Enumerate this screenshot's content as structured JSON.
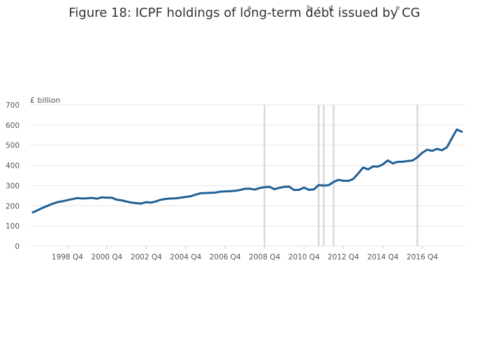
{
  "chart_data": {
    "type": "line",
    "title": "Figure 18: ICPF holdings of long-term debt issued by CG",
    "ylabel": "£ billion",
    "xlabel": "",
    "ylim": [
      0,
      700
    ],
    "yticks": [
      0,
      100,
      200,
      300,
      400,
      500,
      600,
      700
    ],
    "xtick_labels": [
      "1998 Q4",
      "2000 Q4",
      "2002 Q4",
      "2004 Q4",
      "2006 Q4",
      "2008 Q4",
      "2010 Q4",
      "2012 Q4",
      "2014 Q4",
      "2016 Q4"
    ],
    "grid": true,
    "annotations": [
      {
        "label": "a",
        "quarter": "2008 Q4"
      },
      {
        "label": "b",
        "quarter": "2011 Q3"
      },
      {
        "label": "c",
        "quarter": "2011 Q4"
      },
      {
        "label": "d",
        "quarter": "2012 Q2"
      },
      {
        "label": "e",
        "quarter": "2016 Q3"
      }
    ],
    "x_start": "1997 Q1",
    "series": [
      {
        "values": [
          167,
          178,
          190,
          200,
          210,
          218,
          222,
          228,
          233,
          238,
          236,
          237,
          239,
          235,
          242,
          240,
          240,
          230,
          227,
          221,
          216,
          213,
          211,
          218,
          216,
          222,
          230,
          234,
          236,
          237,
          240,
          244,
          247,
          255,
          262,
          263,
          264,
          265,
          270,
          271,
          272,
          274,
          278,
          284,
          285,
          280,
          288,
          292,
          294,
          282,
          289,
          294,
          295,
          278,
          279,
          290,
          279,
          281,
          303,
          300,
          302,
          318,
          328,
          324,
          323,
          333,
          360,
          390,
          380,
          395,
          394,
          405,
          425,
          410,
          418,
          418,
          422,
          424,
          440,
          463,
          478,
          472,
          482,
          475,
          490,
          535,
          578,
          567
        ],
        "color": "#206095"
      }
    ]
  }
}
